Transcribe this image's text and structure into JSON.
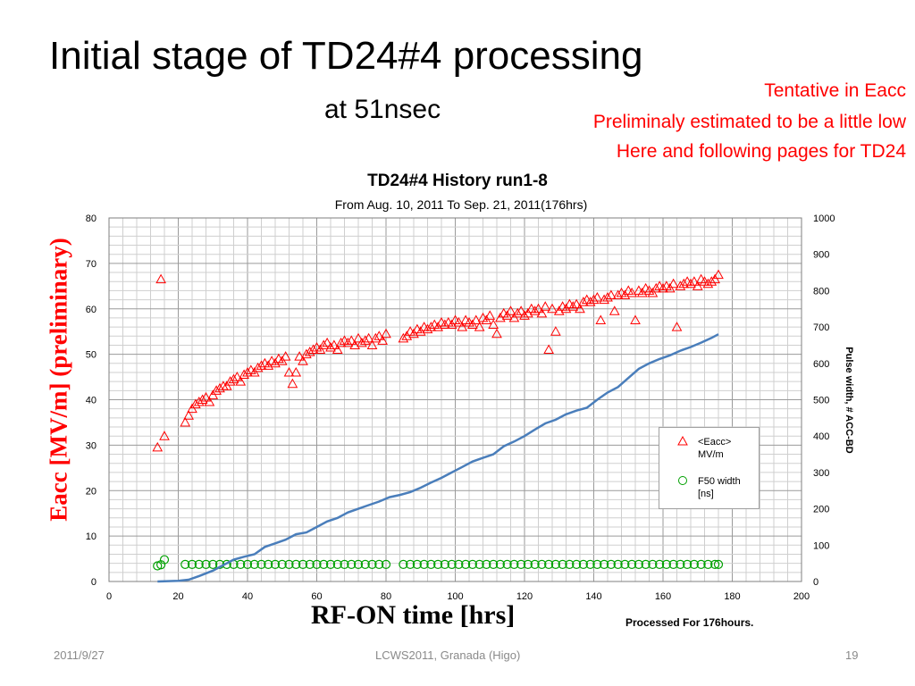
{
  "slide": {
    "title": "Initial stage of TD24#4 processing",
    "subtitle": "at 51nsec",
    "notes": [
      "Tentative in Eacc",
      "Preliminaly estimated to be a little low",
      "Here and following pages for TD24"
    ],
    "footer": {
      "date": "2011/9/27",
      "conference": "LCWS2011, Granada (Higo)",
      "page": "19"
    }
  },
  "chart_data": {
    "type": "scatter",
    "title": "TD24#4 History run1-8",
    "subtitle": "From Aug. 10, 2011 To Sep. 21, 2011(176hrs)",
    "xlabel": "RF-ON time [hrs]",
    "ylabel": "Eacc [MV/m]  (preliminary)",
    "y2label": "Pulse width, # ACC-BD",
    "annotation": "Processed For 176hours.",
    "legend": [
      "<Eacc> MV/m",
      "F50 width [ns]"
    ],
    "xlim": [
      0,
      200
    ],
    "ylim": [
      0,
      80
    ],
    "y2lim": [
      0,
      1000
    ],
    "xticks": [
      0,
      20,
      40,
      60,
      80,
      100,
      120,
      140,
      160,
      180,
      200
    ],
    "yticks": [
      0,
      10,
      20,
      30,
      40,
      50,
      60,
      70,
      80
    ],
    "y2ticks": [
      0,
      100,
      200,
      300,
      400,
      500,
      600,
      700,
      800,
      900,
      1000
    ],
    "grid": true,
    "legend_position": "lower-right",
    "colors": {
      "eacc": "#ff0000",
      "f50": "#00a000",
      "acc_bd": "#4a7ebb"
    },
    "series": [
      {
        "name": "<Eacc> MV/m",
        "marker": "triangle",
        "axis": "left",
        "points": [
          [
            14,
            29.5
          ],
          [
            15,
            66.5
          ],
          [
            16,
            32
          ],
          [
            22,
            35
          ],
          [
            23,
            36.5
          ],
          [
            24,
            38
          ],
          [
            25,
            39
          ],
          [
            26,
            39.5
          ],
          [
            27,
            40
          ],
          [
            28,
            40.5
          ],
          [
            29,
            39.5
          ],
          [
            30,
            41
          ],
          [
            31,
            42
          ],
          [
            32,
            42.5
          ],
          [
            33,
            43
          ],
          [
            34,
            43
          ],
          [
            35,
            44
          ],
          [
            36,
            44.5
          ],
          [
            37,
            45
          ],
          [
            38,
            44
          ],
          [
            39,
            45.5
          ],
          [
            40,
            46
          ],
          [
            41,
            46.5
          ],
          [
            42,
            46
          ],
          [
            43,
            47
          ],
          [
            44,
            47.5
          ],
          [
            45,
            48
          ],
          [
            46,
            47.5
          ],
          [
            47,
            48.5
          ],
          [
            48,
            48
          ],
          [
            49,
            49
          ],
          [
            50,
            48.5
          ],
          [
            51,
            49.5
          ],
          [
            52,
            46
          ],
          [
            53,
            43.5
          ],
          [
            54,
            46
          ],
          [
            55,
            49.5
          ],
          [
            56,
            48.5
          ],
          [
            57,
            50
          ],
          [
            58,
            50.5
          ],
          [
            59,
            51
          ],
          [
            60,
            51.5
          ],
          [
            61,
            51
          ],
          [
            62,
            52
          ],
          [
            63,
            52.5
          ],
          [
            64,
            51.5
          ],
          [
            65,
            52
          ],
          [
            66,
            51
          ],
          [
            67,
            52.5
          ],
          [
            68,
            53
          ],
          [
            69,
            52.5
          ],
          [
            70,
            53
          ],
          [
            71,
            52
          ],
          [
            72,
            53.5
          ],
          [
            73,
            52.5
          ],
          [
            74,
            53
          ],
          [
            75,
            53.5
          ],
          [
            76,
            52
          ],
          [
            77,
            53.5
          ],
          [
            78,
            54
          ],
          [
            79,
            53
          ],
          [
            80,
            54.5
          ],
          [
            85,
            53.5
          ],
          [
            86,
            54
          ],
          [
            87,
            55
          ],
          [
            88,
            54.5
          ],
          [
            89,
            55.5
          ],
          [
            90,
            55
          ],
          [
            91,
            56
          ],
          [
            92,
            55.5
          ],
          [
            93,
            56
          ],
          [
            94,
            56.5
          ],
          [
            95,
            56
          ],
          [
            96,
            57
          ],
          [
            97,
            56.5
          ],
          [
            98,
            57
          ],
          [
            99,
            56.5
          ],
          [
            100,
            57.5
          ],
          [
            101,
            57
          ],
          [
            102,
            56
          ],
          [
            103,
            57.5
          ],
          [
            104,
            57
          ],
          [
            105,
            56.5
          ],
          [
            106,
            57.5
          ],
          [
            107,
            56
          ],
          [
            108,
            58
          ],
          [
            109,
            57.5
          ],
          [
            110,
            58.5
          ],
          [
            111,
            56.5
          ],
          [
            112,
            54.5
          ],
          [
            113,
            58
          ],
          [
            114,
            59
          ],
          [
            115,
            58.5
          ],
          [
            116,
            59.5
          ],
          [
            117,
            58
          ],
          [
            118,
            59
          ],
          [
            119,
            59.5
          ],
          [
            120,
            58.5
          ],
          [
            121,
            59
          ],
          [
            122,
            60
          ],
          [
            123,
            59.5
          ],
          [
            124,
            60
          ],
          [
            125,
            59
          ],
          [
            126,
            60.5
          ],
          [
            127,
            51
          ],
          [
            128,
            60
          ],
          [
            129,
            55
          ],
          [
            130,
            59.5
          ],
          [
            131,
            60.5
          ],
          [
            132,
            60
          ],
          [
            133,
            61
          ],
          [
            134,
            60.5
          ],
          [
            135,
            61
          ],
          [
            136,
            60
          ],
          [
            137,
            61.5
          ],
          [
            138,
            62
          ],
          [
            139,
            61.5
          ],
          [
            140,
            62
          ],
          [
            141,
            62.5
          ],
          [
            142,
            57.5
          ],
          [
            143,
            62
          ],
          [
            144,
            62.5
          ],
          [
            145,
            63
          ],
          [
            146,
            59.5
          ],
          [
            147,
            63
          ],
          [
            148,
            63.5
          ],
          [
            149,
            63
          ],
          [
            150,
            64
          ],
          [
            151,
            63.5
          ],
          [
            152,
            57.5
          ],
          [
            153,
            64
          ],
          [
            154,
            63.5
          ],
          [
            155,
            64.5
          ],
          [
            156,
            64
          ],
          [
            157,
            63.5
          ],
          [
            158,
            64.5
          ],
          [
            159,
            65
          ],
          [
            160,
            64.5
          ],
          [
            161,
            65
          ],
          [
            162,
            64.5
          ],
          [
            163,
            65.5
          ],
          [
            164,
            56
          ],
          [
            165,
            65
          ],
          [
            166,
            65.5
          ],
          [
            167,
            66
          ],
          [
            168,
            65.5
          ],
          [
            169,
            66
          ],
          [
            170,
            65
          ],
          [
            171,
            66.5
          ],
          [
            172,
            66
          ],
          [
            173,
            65.5
          ],
          [
            174,
            66
          ],
          [
            175,
            66.5
          ],
          [
            176,
            67.5
          ]
        ]
      },
      {
        "name": "F50 width [ns]",
        "marker": "circle",
        "axis": "right",
        "points": [
          [
            14,
            43
          ],
          [
            15,
            46
          ],
          [
            16,
            60
          ],
          [
            22,
            47
          ],
          [
            24,
            47
          ],
          [
            26,
            47
          ],
          [
            28,
            47
          ],
          [
            30,
            47
          ],
          [
            32,
            47
          ],
          [
            34,
            47
          ],
          [
            36,
            47
          ],
          [
            38,
            47
          ],
          [
            40,
            47
          ],
          [
            42,
            47
          ],
          [
            44,
            47
          ],
          [
            46,
            47
          ],
          [
            48,
            47
          ],
          [
            50,
            47
          ],
          [
            52,
            47
          ],
          [
            54,
            47
          ],
          [
            56,
            47
          ],
          [
            58,
            47
          ],
          [
            60,
            47
          ],
          [
            62,
            47
          ],
          [
            64,
            47
          ],
          [
            66,
            47
          ],
          [
            68,
            47
          ],
          [
            70,
            47
          ],
          [
            72,
            47
          ],
          [
            74,
            47
          ],
          [
            76,
            47
          ],
          [
            78,
            47
          ],
          [
            80,
            47
          ],
          [
            85,
            47
          ],
          [
            87,
            47
          ],
          [
            89,
            47
          ],
          [
            91,
            47
          ],
          [
            93,
            47
          ],
          [
            95,
            47
          ],
          [
            97,
            47
          ],
          [
            99,
            47
          ],
          [
            101,
            47
          ],
          [
            103,
            47
          ],
          [
            105,
            47
          ],
          [
            107,
            47
          ],
          [
            109,
            47
          ],
          [
            111,
            47
          ],
          [
            113,
            47
          ],
          [
            115,
            47
          ],
          [
            117,
            47
          ],
          [
            119,
            47
          ],
          [
            121,
            47
          ],
          [
            123,
            47
          ],
          [
            125,
            47
          ],
          [
            127,
            47
          ],
          [
            129,
            47
          ],
          [
            131,
            47
          ],
          [
            133,
            47
          ],
          [
            135,
            47
          ],
          [
            137,
            47
          ],
          [
            139,
            47
          ],
          [
            141,
            47
          ],
          [
            143,
            47
          ],
          [
            145,
            47
          ],
          [
            147,
            47
          ],
          [
            149,
            47
          ],
          [
            151,
            47
          ],
          [
            153,
            47
          ],
          [
            155,
            47
          ],
          [
            157,
            47
          ],
          [
            159,
            47
          ],
          [
            161,
            47
          ],
          [
            163,
            47
          ],
          [
            165,
            47
          ],
          [
            167,
            47
          ],
          [
            169,
            47
          ],
          [
            171,
            47
          ],
          [
            173,
            47
          ],
          [
            175,
            47
          ],
          [
            176,
            47
          ]
        ]
      },
      {
        "name": "# ACC-BD",
        "marker": "line",
        "axis": "right",
        "points": [
          [
            14,
            0
          ],
          [
            20,
            2
          ],
          [
            23,
            5
          ],
          [
            26,
            15
          ],
          [
            30,
            30
          ],
          [
            33,
            45
          ],
          [
            36,
            60
          ],
          [
            39,
            68
          ],
          [
            42,
            75
          ],
          [
            45,
            95
          ],
          [
            48,
            105
          ],
          [
            51,
            115
          ],
          [
            54,
            130
          ],
          [
            57,
            135
          ],
          [
            60,
            150
          ],
          [
            63,
            165
          ],
          [
            66,
            175
          ],
          [
            69,
            190
          ],
          [
            72,
            200
          ],
          [
            75,
            210
          ],
          [
            78,
            220
          ],
          [
            81,
            232
          ],
          [
            84,
            238
          ],
          [
            87,
            246
          ],
          [
            90,
            258
          ],
          [
            93,
            272
          ],
          [
            96,
            285
          ],
          [
            99,
            300
          ],
          [
            102,
            315
          ],
          [
            105,
            330
          ],
          [
            108,
            340
          ],
          [
            111,
            350
          ],
          [
            114,
            372
          ],
          [
            117,
            385
          ],
          [
            120,
            400
          ],
          [
            123,
            418
          ],
          [
            126,
            435
          ],
          [
            129,
            445
          ],
          [
            132,
            460
          ],
          [
            135,
            470
          ],
          [
            138,
            478
          ],
          [
            141,
            500
          ],
          [
            144,
            520
          ],
          [
            147,
            535
          ],
          [
            150,
            560
          ],
          [
            153,
            585
          ],
          [
            156,
            600
          ],
          [
            159,
            612
          ],
          [
            162,
            622
          ],
          [
            165,
            635
          ],
          [
            168,
            645
          ],
          [
            171,
            657
          ],
          [
            174,
            670
          ],
          [
            176,
            680
          ]
        ]
      }
    ]
  }
}
